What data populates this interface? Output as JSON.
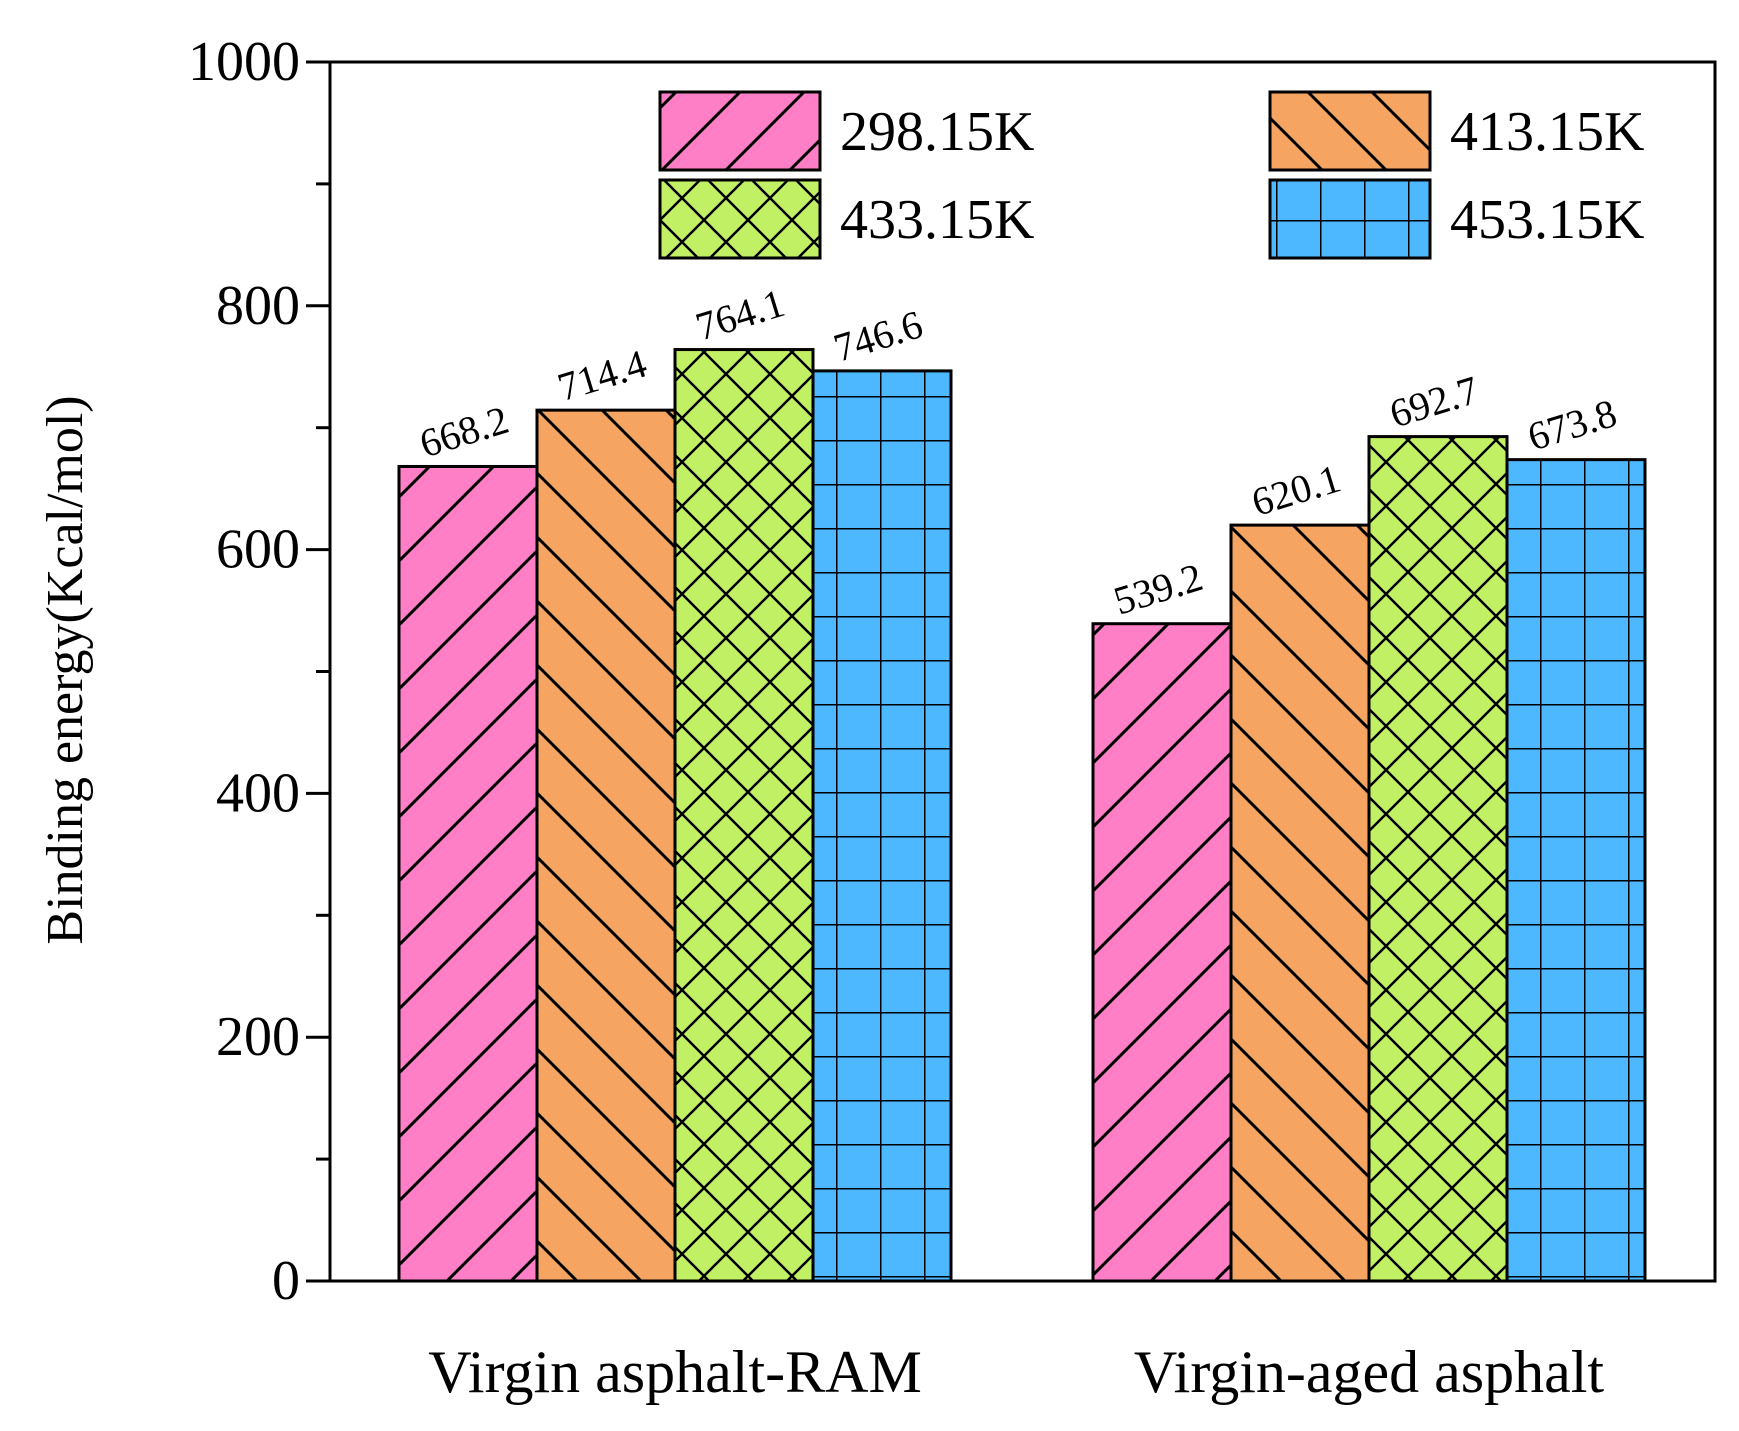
{
  "chart_data": {
    "type": "bar",
    "title": "",
    "xlabel": "",
    "ylabel": "Binding energy(Kcal/mol)",
    "ylim": [
      0,
      1000
    ],
    "yticks": [
      0,
      200,
      400,
      600,
      800,
      1000
    ],
    "ytick_labels": [
      "0",
      "200",
      "400",
      "600",
      "800",
      "1000"
    ],
    "categories": [
      "Virgin asphalt-RAM",
      "Virgin-aged asphalt"
    ],
    "series": [
      {
        "name": "298.15K",
        "values": [
          668.2,
          539.2
        ],
        "labels": [
          "668.2",
          "539.2"
        ],
        "color": "#ff7fc6",
        "pattern": "forward-diagonal"
      },
      {
        "name": "413.15K",
        "values": [
          714.4,
          620.1
        ],
        "labels": [
          "714.4",
          "620.1"
        ],
        "color": "#f5a462",
        "pattern": "back-diagonal"
      },
      {
        "name": "433.15K",
        "values": [
          764.1,
          692.7
        ],
        "labels": [
          "764.1",
          "692.7"
        ],
        "color": "#c2f065",
        "pattern": "crosshatch"
      },
      {
        "name": "453.15K",
        "values": [
          746.6,
          673.8
        ],
        "labels": [
          "746.6",
          "673.8"
        ],
        "color": "#4db8ff",
        "pattern": "grid"
      }
    ],
    "legend": {
      "position": "top",
      "columns": 2
    },
    "grid": false
  }
}
